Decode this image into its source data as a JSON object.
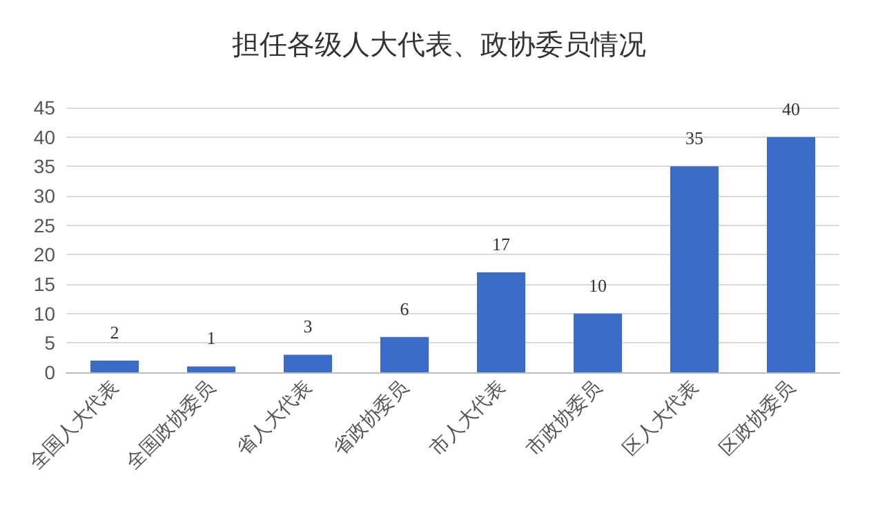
{
  "chart_data": {
    "type": "bar",
    "title": "担任各级人大代表、政协委员情况",
    "categories": [
      "全国人大代表",
      "全国政协委员",
      "省人大代表",
      "省政协委员",
      "市人大代表",
      "市政协委员",
      "区人大代表",
      "区政协委员"
    ],
    "values": [
      2,
      1,
      3,
      6,
      17,
      10,
      35,
      40
    ],
    "color": "#3a6cc8",
    "ylim": [
      0,
      45
    ],
    "yticks": [
      0,
      5,
      10,
      15,
      20,
      25,
      30,
      35,
      40,
      45
    ],
    "grid": "y",
    "data_labels": true
  }
}
